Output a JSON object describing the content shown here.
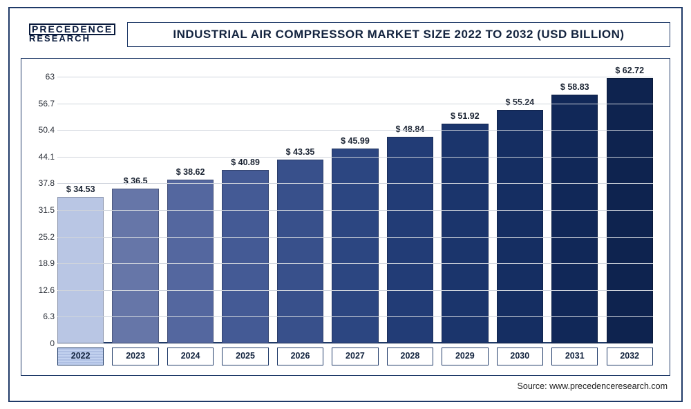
{
  "logo": {
    "line1": "PRECEDENCE",
    "line2": "RESEARCH"
  },
  "title": "INDUSTRIAL AIR COMPRESSOR MARKET SIZE 2022 TO 2032 (USD BILLION)",
  "source": "Source: www.precedenceresearch.com",
  "chart": {
    "type": "bar",
    "ymin": 0,
    "ymax": 63,
    "yticks": [
      0,
      6.3,
      12.6,
      18.9,
      25.2,
      31.5,
      37.8,
      44.1,
      50.4,
      56.7,
      63
    ],
    "grid_color": "#cfd4dc",
    "baseline_color": "#1f3a68",
    "background_color": "#ffffff",
    "title_fontsize": 17,
    "label_fontsize": 12.5,
    "tick_fontsize": 12,
    "value_prefix": "$ ",
    "categories": [
      "2022",
      "2023",
      "2024",
      "2025",
      "2026",
      "2027",
      "2028",
      "2029",
      "2030",
      "2031",
      "2032"
    ],
    "values": [
      34.53,
      36.5,
      38.62,
      40.89,
      43.35,
      45.99,
      48.84,
      51.92,
      55.24,
      58.83,
      62.72
    ],
    "value_labels": [
      "$ 34.53",
      "$ 36.5",
      "$ 38.62",
      "$ 40.89",
      "$ 43.35",
      "$ 45.99",
      "$ 48.84",
      "$ 51.92",
      "$ 55.24",
      "$ 58.83",
      "$ 62.72"
    ],
    "bar_colors": [
      "#b9c6e4",
      "#6676a8",
      "#54679f",
      "#445a95",
      "#38508b",
      "#2c4681",
      "#223c76",
      "#1b356c",
      "#152e62",
      "#112858",
      "#0e234f"
    ],
    "active_year_index": 0,
    "bar_border_color": "rgba(0,0,0,0.25)",
    "value_label_color": "#1b2433",
    "xcell_border_color": "#1f3a68",
    "xcell_text_color": "#13243f"
  }
}
